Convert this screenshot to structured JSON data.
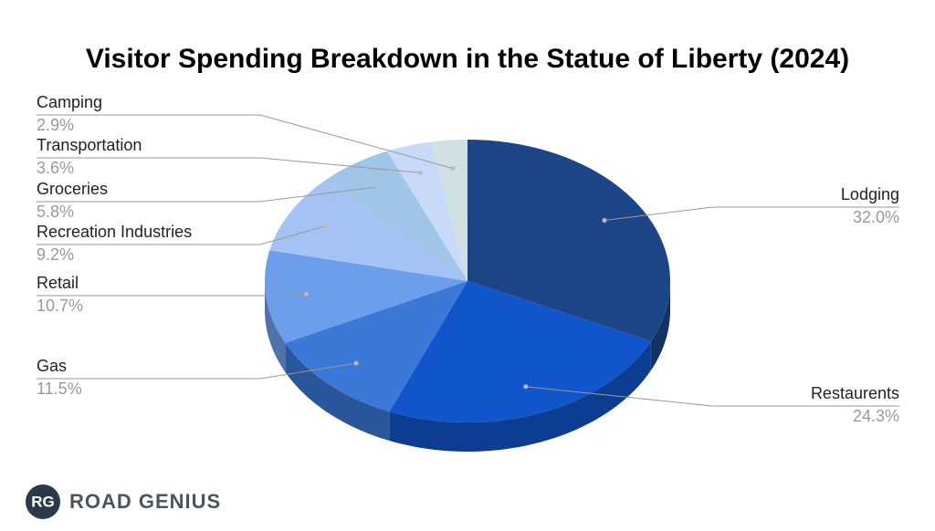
{
  "chart_data": {
    "type": "pie",
    "title": "Visitor Spending Breakdown in the Statue of Liberty (2024)",
    "categories": [
      "Lodging",
      "Restaurents",
      "Gas",
      "Retail",
      "Recreation Industries",
      "Groceries",
      "Transportation",
      "Camping"
    ],
    "values": [
      32.0,
      24.3,
      11.5,
      10.7,
      9.2,
      5.8,
      3.6,
      2.9
    ],
    "value_labels": [
      "32.0%",
      "24.3%",
      "11.5%",
      "10.7%",
      "9.2%",
      "5.8%",
      "3.6%",
      "2.9%"
    ],
    "colors": [
      "#1c4587",
      "#1155cc",
      "#3c78d8",
      "#6d9eeb",
      "#a4c2f4",
      "#9fc5e8",
      "#c9daf8",
      "#d0e0e3"
    ]
  },
  "logo": {
    "initials": "RG",
    "name": "ROAD GENIUS"
  }
}
